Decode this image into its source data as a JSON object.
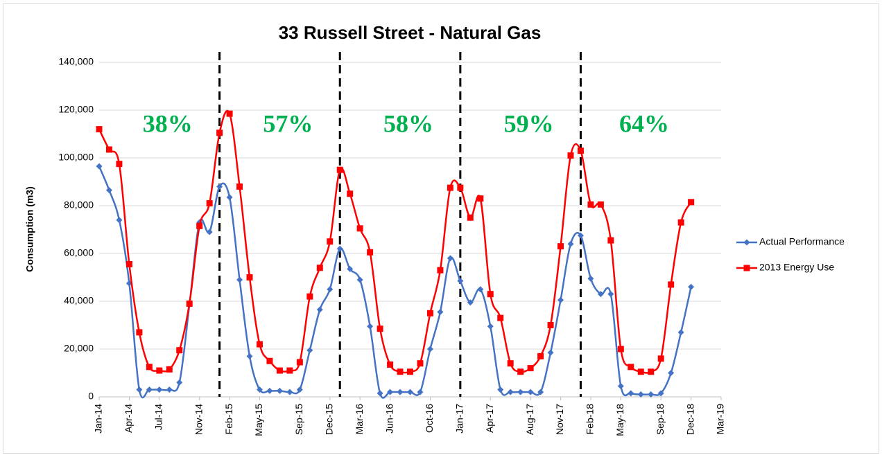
{
  "chart_data": {
    "type": "line",
    "title": "33 Russell Street - Natural Gas",
    "y_label": "Consumption (m3)",
    "x": [
      "2014-01",
      "2014-02",
      "2014-03",
      "2014-04",
      "2014-05",
      "2014-06",
      "2014-07",
      "2014-08",
      "2014-09",
      "2014-10",
      "2014-11",
      "2014-12",
      "2015-01",
      "2015-02",
      "2015-03",
      "2015-04",
      "2015-05",
      "2015-06",
      "2015-07",
      "2015-08",
      "2015-09",
      "2015-10",
      "2015-11",
      "2015-12",
      "2016-01",
      "2016-02",
      "2016-03",
      "2016-04",
      "2016-05",
      "2016-06",
      "2016-07",
      "2016-08",
      "2016-09",
      "2016-10",
      "2016-11",
      "2016-12",
      "2017-01",
      "2017-02",
      "2017-03",
      "2017-04",
      "2017-05",
      "2017-06",
      "2017-07",
      "2017-08",
      "2017-09",
      "2017-10",
      "2017-11",
      "2017-12",
      "2018-01",
      "2018-02",
      "2018-03",
      "2018-04",
      "2018-05",
      "2018-06",
      "2018-07",
      "2018-08",
      "2018-09",
      "2018-10",
      "2018-11",
      "2018-12"
    ],
    "series": [
      {
        "name": "Actual Performance",
        "color": "#4472c4",
        "marker": "diamond",
        "values": [
          96500,
          86500,
          74000,
          47500,
          3000,
          3000,
          3000,
          3000,
          6000,
          38500,
          73000,
          69000,
          88000,
          83500,
          49000,
          17000,
          3000,
          2500,
          2500,
          2000,
          3000,
          19500,
          36500,
          45000,
          62000,
          53500,
          49000,
          29500,
          1500,
          2000,
          2000,
          2000,
          2000,
          20000,
          35500,
          58000,
          48500,
          39500,
          45000,
          29500,
          3000,
          2000,
          2000,
          2000,
          2000,
          18500,
          40500,
          64000,
          67500,
          49500,
          43000,
          43000,
          4500,
          1500,
          1000,
          1000,
          1500,
          10000,
          27000,
          46000
        ]
      },
      {
        "name": "2013 Energy Use",
        "color": "#ff0000",
        "marker": "square",
        "values": [
          112000,
          103500,
          97500,
          55500,
          27000,
          12500,
          11000,
          11500,
          19500,
          39000,
          71500,
          81000,
          110500,
          118500,
          88000,
          50000,
          22000,
          15000,
          11000,
          11000,
          14500,
          42000,
          54000,
          65000,
          95000,
          85000,
          70500,
          60500,
          28500,
          13500,
          10500,
          10500,
          14000,
          35000,
          53000,
          87500,
          87500,
          75000,
          83000,
          43000,
          33000,
          14000,
          10500,
          12000,
          17000,
          30000,
          63000,
          101000,
          103000,
          80500,
          80500,
          65500,
          20000,
          12500,
          10500,
          10500,
          16000,
          47000,
          73000,
          81500
        ]
      }
    ],
    "xlim": [
      "2014-01",
      "2019-03"
    ],
    "xticks": [
      {
        "value": "2014-01",
        "label": "Jan-14"
      },
      {
        "value": "2014-04",
        "label": "Apr-14"
      },
      {
        "value": "2014-07",
        "label": "Jul-14"
      },
      {
        "value": "2014-11",
        "label": "Nov-14"
      },
      {
        "value": "2015-02",
        "label": "Feb-15"
      },
      {
        "value": "2015-05",
        "label": "May-15"
      },
      {
        "value": "2015-09",
        "label": "Sep-15"
      },
      {
        "value": "2015-12",
        "label": "Dec-15"
      },
      {
        "value": "2016-03",
        "label": "Mar-16"
      },
      {
        "value": "2016-06",
        "label": "Jun-16"
      },
      {
        "value": "2016-10",
        "label": "Oct-16"
      },
      {
        "value": "2017-01",
        "label": "Jan-17"
      },
      {
        "value": "2017-04",
        "label": "Apr-17"
      },
      {
        "value": "2017-08",
        "label": "Aug-17"
      },
      {
        "value": "2017-11",
        "label": "Nov-17"
      },
      {
        "value": "2018-02",
        "label": "Feb-18"
      },
      {
        "value": "2018-05",
        "label": "May-18"
      },
      {
        "value": "2018-09",
        "label": "Sep-18"
      },
      {
        "value": "2018-12",
        "label": "Dec-18"
      },
      {
        "value": "2019-03",
        "label": "Mar-19"
      }
    ],
    "ylim": [
      0,
      140000
    ],
    "yticks": [
      0,
      {
        "value": 20000,
        "label": "20,000"
      },
      {
        "value": 40000,
        "label": "40,000"
      },
      {
        "value": 60000,
        "label": "60,000"
      },
      {
        "value": 80000,
        "label": "80,000"
      },
      {
        "value": 100000,
        "label": "100,000"
      },
      {
        "value": 120000,
        "label": "120,000"
      },
      {
        "value": 140000,
        "label": "140,000"
      }
    ],
    "grid": true,
    "legend": "right",
    "dividers": [
      "2015-01",
      "2016-01",
      "2017-01",
      "2018-01"
    ],
    "annotations": [
      "38%",
      "57%",
      "58%",
      "59%",
      "64%"
    ]
  }
}
